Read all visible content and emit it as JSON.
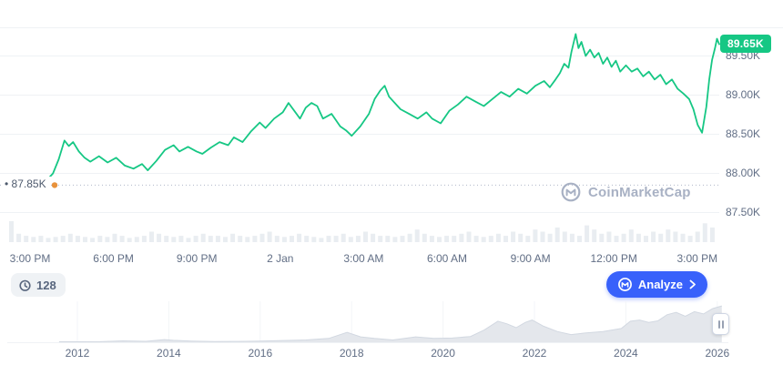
{
  "colors": {
    "green": "#16c784",
    "blue": "#3861fb",
    "grid": "#eff2f5",
    "axis_text": "#616e85",
    "dotted": "#b0b8c9",
    "volume": "#e9edf1",
    "brush_fill": "#e4e7ec",
    "brush_line": "#d2d8e1",
    "marker": "#e8923c",
    "watermark": "#a8b1c4",
    "pill_bg": "#eff2f5",
    "pill_text": "#58667e"
  },
  "price_badge": {
    "value": "89.65K"
  },
  "ref_label": "• 87.85K",
  "watermark_text": "CoinMarketCap",
  "history_pill": {
    "value": "128"
  },
  "analyze_button": {
    "label": "Analyze"
  },
  "chart_data": [
    {
      "type": "line",
      "series_name": "price",
      "x_tick_labels": [
        "3:00 PM",
        "6:00 PM",
        "9:00 PM",
        "2 Jan",
        "3:00 AM",
        "6:00 AM",
        "9:00 AM",
        "12:00 PM",
        "3:00 PM"
      ],
      "y_ticks": [
        89.5,
        89.0,
        88.5,
        88.0,
        87.5
      ],
      "y_tick_labels": [
        "89.50K",
        "89.00K",
        "88.50K",
        "88.00K",
        "87.50K"
      ],
      "xlim": [
        0,
        24
      ],
      "ylim": [
        87.35,
        89.9
      ],
      "ref_price": 87.85,
      "last_price": 89.65,
      "points": [
        [
          0,
          87.85
        ],
        [
          0.25,
          87.9
        ],
        [
          0.5,
          87.88
        ],
        [
          0.8,
          88.0
        ],
        [
          1.0,
          88.18
        ],
        [
          1.2,
          88.42
        ],
        [
          1.35,
          88.35
        ],
        [
          1.5,
          88.4
        ],
        [
          1.7,
          88.28
        ],
        [
          1.9,
          88.2
        ],
        [
          2.1,
          88.15
        ],
        [
          2.4,
          88.22
        ],
        [
          2.7,
          88.14
        ],
        [
          3.0,
          88.2
        ],
        [
          3.3,
          88.1
        ],
        [
          3.6,
          88.06
        ],
        [
          3.9,
          88.12
        ],
        [
          4.1,
          88.04
        ],
        [
          4.4,
          88.16
        ],
        [
          4.7,
          88.3
        ],
        [
          5.0,
          88.36
        ],
        [
          5.2,
          88.28
        ],
        [
          5.5,
          88.34
        ],
        [
          5.8,
          88.28
        ],
        [
          6.0,
          88.25
        ],
        [
          6.3,
          88.33
        ],
        [
          6.6,
          88.4
        ],
        [
          6.9,
          88.36
        ],
        [
          7.1,
          88.46
        ],
        [
          7.4,
          88.4
        ],
        [
          7.7,
          88.54
        ],
        [
          8.0,
          88.65
        ],
        [
          8.2,
          88.58
        ],
        [
          8.5,
          88.7
        ],
        [
          8.8,
          88.78
        ],
        [
          9.0,
          88.9
        ],
        [
          9.2,
          88.8
        ],
        [
          9.4,
          88.7
        ],
        [
          9.6,
          88.84
        ],
        [
          9.8,
          88.9
        ],
        [
          10.0,
          88.86
        ],
        [
          10.2,
          88.7
        ],
        [
          10.5,
          88.76
        ],
        [
          10.8,
          88.6
        ],
        [
          11.0,
          88.55
        ],
        [
          11.2,
          88.48
        ],
        [
          11.5,
          88.6
        ],
        [
          11.8,
          88.76
        ],
        [
          12.0,
          88.95
        ],
        [
          12.2,
          89.06
        ],
        [
          12.35,
          89.12
        ],
        [
          12.5,
          88.98
        ],
        [
          12.7,
          88.9
        ],
        [
          12.9,
          88.82
        ],
        [
          13.2,
          88.76
        ],
        [
          13.5,
          88.7
        ],
        [
          13.8,
          88.78
        ],
        [
          14.0,
          88.7
        ],
        [
          14.3,
          88.64
        ],
        [
          14.6,
          88.8
        ],
        [
          14.9,
          88.88
        ],
        [
          15.2,
          88.98
        ],
        [
          15.5,
          88.92
        ],
        [
          15.8,
          88.86
        ],
        [
          16.1,
          88.95
        ],
        [
          16.4,
          89.04
        ],
        [
          16.7,
          88.98
        ],
        [
          17.0,
          89.08
        ],
        [
          17.3,
          89.02
        ],
        [
          17.6,
          89.12
        ],
        [
          17.9,
          89.18
        ],
        [
          18.1,
          89.1
        ],
        [
          18.3,
          89.2
        ],
        [
          18.45,
          89.28
        ],
        [
          18.6,
          89.4
        ],
        [
          18.75,
          89.35
        ],
        [
          18.85,
          89.55
        ],
        [
          19.0,
          89.78
        ],
        [
          19.1,
          89.6
        ],
        [
          19.2,
          89.68
        ],
        [
          19.35,
          89.5
        ],
        [
          19.5,
          89.58
        ],
        [
          19.65,
          89.48
        ],
        [
          19.8,
          89.54
        ],
        [
          19.95,
          89.4
        ],
        [
          20.1,
          89.48
        ],
        [
          20.25,
          89.36
        ],
        [
          20.4,
          89.44
        ],
        [
          20.55,
          89.3
        ],
        [
          20.75,
          89.38
        ],
        [
          20.95,
          89.3
        ],
        [
          21.15,
          89.34
        ],
        [
          21.35,
          89.24
        ],
        [
          21.55,
          89.3
        ],
        [
          21.75,
          89.2
        ],
        [
          21.95,
          89.26
        ],
        [
          22.15,
          89.14
        ],
        [
          22.35,
          89.2
        ],
        [
          22.55,
          89.08
        ],
        [
          22.75,
          89.02
        ],
        [
          22.95,
          88.95
        ],
        [
          23.1,
          88.82
        ],
        [
          23.25,
          88.62
        ],
        [
          23.4,
          88.52
        ],
        [
          23.55,
          88.85
        ],
        [
          23.65,
          89.2
        ],
        [
          23.75,
          89.45
        ],
        [
          23.85,
          89.6
        ],
        [
          23.92,
          89.72
        ],
        [
          24,
          89.65
        ]
      ],
      "volume": [
        10,
        4,
        3,
        2.5,
        3,
        2,
        2.5,
        3,
        4,
        3,
        2.5,
        2,
        3,
        2.5,
        4,
        3,
        2,
        2.5,
        3,
        5,
        4,
        3,
        2.5,
        3,
        2,
        3,
        4,
        3,
        3,
        2.5,
        4,
        3,
        2.5,
        3,
        4,
        5,
        3,
        2.5,
        3,
        4,
        3,
        2.5,
        2,
        3,
        3,
        4,
        2.5,
        3,
        5,
        4,
        3,
        3,
        2.5,
        3,
        4,
        6,
        4,
        3,
        2.5,
        3,
        3,
        4,
        5,
        3,
        2.5,
        3,
        4,
        3,
        5,
        4,
        3,
        6,
        5,
        4,
        7,
        5,
        4,
        3,
        8,
        6,
        4,
        5,
        3,
        4,
        6,
        4,
        3,
        5,
        4,
        6,
        5,
        4,
        3,
        5,
        9,
        7
      ]
    },
    {
      "type": "area",
      "series_name": "all-time price (range selector)",
      "x_tick_labels": [
        "2012",
        "2014",
        "2016",
        "2018",
        "2020",
        "2022",
        "2024",
        "2026"
      ],
      "x_tick_years": [
        2012,
        2014,
        2016,
        2018,
        2020,
        2022,
        2024,
        2026
      ],
      "xlim": [
        2011.6,
        2026.2
      ],
      "ylim": [
        0,
        1
      ],
      "points": [
        [
          2011.6,
          0.012
        ],
        [
          2012,
          0.012
        ],
        [
          2012.5,
          0.015
        ],
        [
          2013,
          0.035
        ],
        [
          2013.5,
          0.025
        ],
        [
          2013.9,
          0.07
        ],
        [
          2014.1,
          0.05
        ],
        [
          2014.5,
          0.03
        ],
        [
          2015,
          0.02
        ],
        [
          2015.5,
          0.022
        ],
        [
          2016,
          0.03
        ],
        [
          2016.5,
          0.045
        ],
        [
          2017,
          0.06
        ],
        [
          2017.5,
          0.1
        ],
        [
          2017.9,
          0.26
        ],
        [
          2018.2,
          0.14
        ],
        [
          2018.5,
          0.1
        ],
        [
          2018.9,
          0.06
        ],
        [
          2019.4,
          0.14
        ],
        [
          2019.8,
          0.1
        ],
        [
          2020.2,
          0.11
        ],
        [
          2020.6,
          0.15
        ],
        [
          2020.9,
          0.32
        ],
        [
          2021.2,
          0.55
        ],
        [
          2021.4,
          0.48
        ],
        [
          2021.6,
          0.38
        ],
        [
          2021.8,
          0.52
        ],
        [
          2021.95,
          0.58
        ],
        [
          2022.2,
          0.42
        ],
        [
          2022.5,
          0.28
        ],
        [
          2022.8,
          0.2
        ],
        [
          2023.1,
          0.24
        ],
        [
          2023.5,
          0.28
        ],
        [
          2023.9,
          0.36
        ],
        [
          2024.1,
          0.55
        ],
        [
          2024.3,
          0.58
        ],
        [
          2024.5,
          0.52
        ],
        [
          2024.7,
          0.56
        ],
        [
          2024.9,
          0.72
        ],
        [
          2025.1,
          0.78
        ],
        [
          2025.3,
          0.68
        ],
        [
          2025.5,
          0.8
        ],
        [
          2025.7,
          0.74
        ],
        [
          2025.9,
          0.88
        ],
        [
          2026.1,
          0.95
        ]
      ]
    }
  ]
}
